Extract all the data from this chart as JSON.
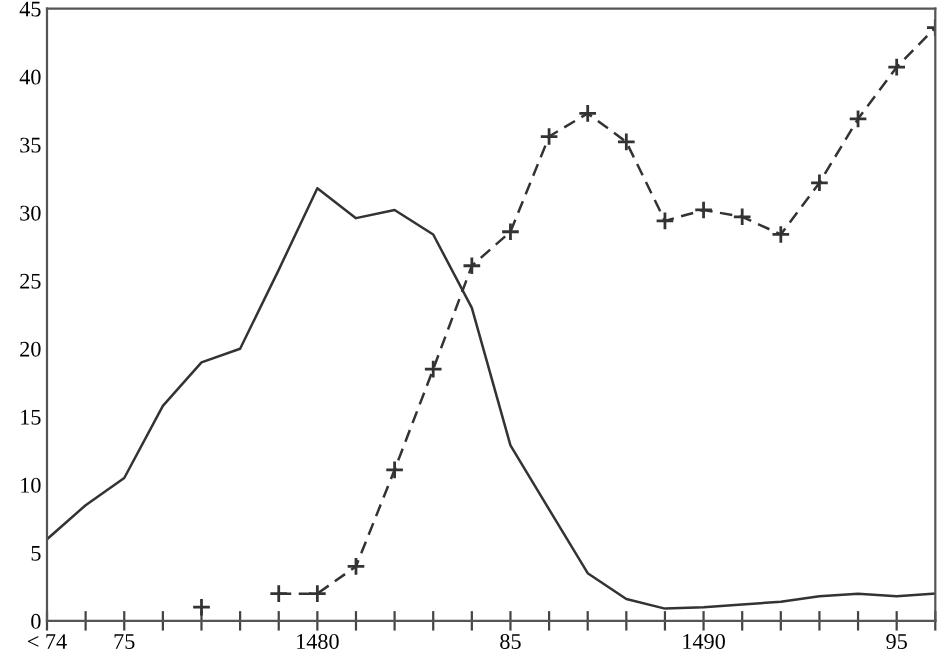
{
  "chart_data": {
    "type": "line",
    "categories": [
      "< 74",
      null,
      "75",
      null,
      null,
      null,
      null,
      "1480",
      null,
      null,
      null,
      null,
      "85",
      null,
      null,
      null,
      null,
      "1490",
      null,
      null,
      null,
      null,
      "95",
      null
    ],
    "series": [
      {
        "color": "#333333",
        "line_style": "solid",
        "marker": "none",
        "values": [
          6.0,
          8.5,
          10.5,
          15.8,
          19.0,
          20.0,
          25.8,
          31.8,
          29.6,
          30.2,
          28.4,
          23,
          12.9,
          8.2,
          3.5,
          1.6,
          0.9,
          1.0,
          1.2,
          1.4,
          1.8,
          2.0,
          1.8,
          2.0
        ]
      },
      {
        "color": "#333333",
        "line_style": "dashed",
        "marker": "cross",
        "values": [
          null,
          null,
          null,
          null,
          1.0,
          null,
          2.0,
          2.0,
          4.0,
          11.1,
          18.5,
          26.1,
          28.6,
          35.6,
          37.3,
          35.2,
          29.4,
          30.2,
          29.7,
          28.4,
          32.2,
          36.9,
          40.7,
          43.6
        ]
      }
    ],
    "ylim": [
      0,
      45
    ],
    "yticks": [
      0,
      5,
      10,
      15,
      20,
      25,
      30,
      35,
      40,
      45
    ],
    "grid": false
  }
}
